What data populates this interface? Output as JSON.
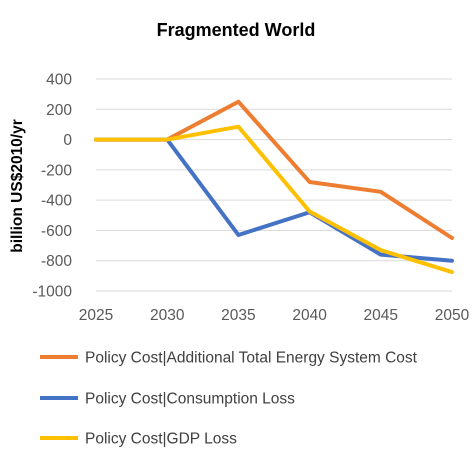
{
  "chart_data": {
    "type": "line",
    "title": "Fragmented World",
    "xlabel": "",
    "ylabel": "billion US$2010/yr",
    "x": [
      2025,
      2030,
      2035,
      2040,
      2045,
      2050
    ],
    "ylim": [
      -1000,
      400
    ],
    "yticks": [
      400,
      200,
      0,
      -200,
      -400,
      -600,
      -800,
      -1000
    ],
    "xticks": [
      2025,
      2030,
      2035,
      2040,
      2045,
      2050
    ],
    "ytick_labels": [
      "400",
      "200",
      "0",
      "-200",
      "-400",
      "-600",
      "-800",
      "-1000"
    ],
    "xtick_labels": [
      "2025",
      "2030",
      "2035",
      "2040",
      "2045",
      "2050"
    ],
    "grid": true,
    "legend_position": "bottom",
    "series": [
      {
        "name": "Policy Cost|Additional Total Energy System Cost",
        "color": "#ED7D31",
        "values": [
          0,
          0,
          250,
          -280,
          -345,
          -650
        ]
      },
      {
        "name": "Policy Cost|Consumption Loss",
        "color": "#4472C4",
        "values": [
          0,
          0,
          -630,
          -480,
          -760,
          -800
        ]
      },
      {
        "name": "Policy Cost|GDP Loss",
        "color": "#FFC000",
        "values": [
          0,
          0,
          85,
          -475,
          -730,
          -875
        ]
      }
    ]
  }
}
